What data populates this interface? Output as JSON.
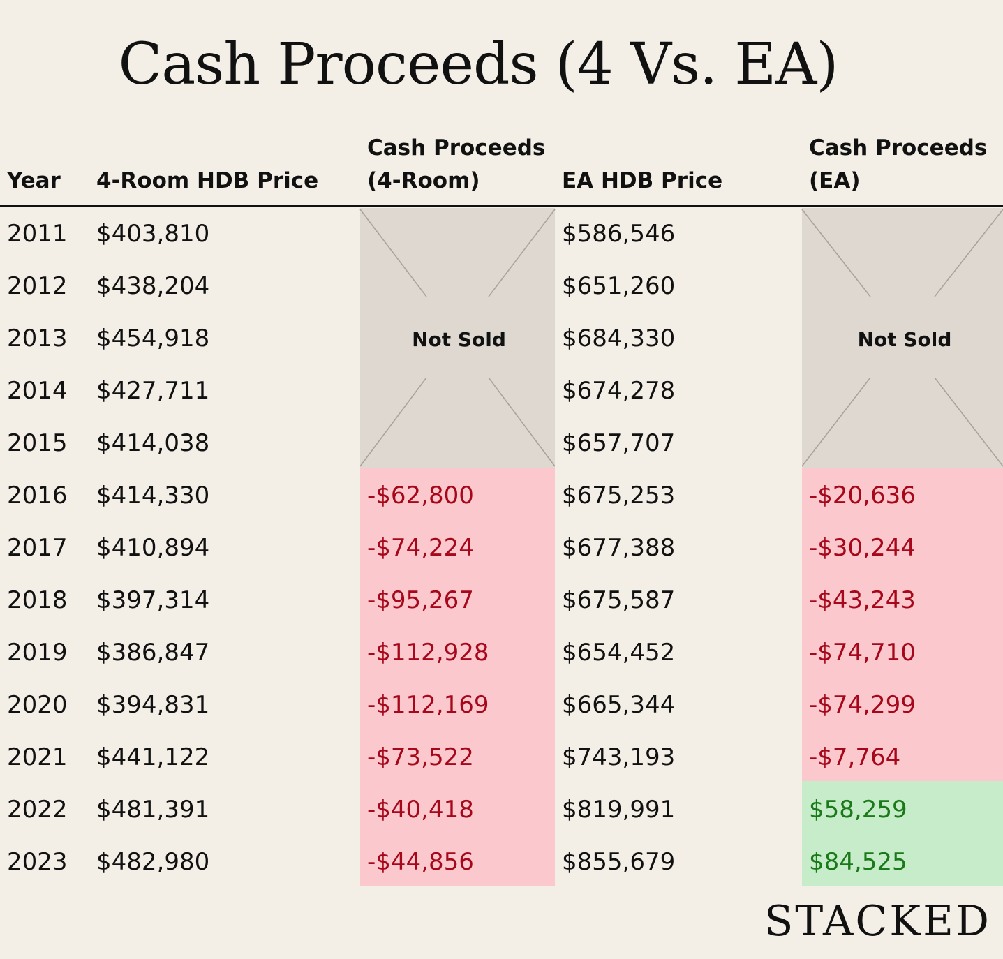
{
  "title": "Cash Proceeds (4 Vs. EA)",
  "headers": {
    "year": "Year",
    "four_room_price": "4-Room HDB Price",
    "cash_four_line1": "Cash Proceeds",
    "cash_four_line2": "(4-Room)",
    "ea_price": "EA HDB Price",
    "cash_ea_line1": "Cash Proceeds",
    "cash_ea_line2": "(EA)"
  },
  "not_sold_label": "Not Sold",
  "colors": {
    "background": "#f3efe6",
    "not_sold_fill": "#ded8d1",
    "negative_fill": "#fac8cd",
    "positive_fill": "#c7ecc9",
    "negative_text": "#a6071a",
    "positive_text": "#1a7a1a"
  },
  "rows": [
    {
      "year": "2011",
      "four_room_price": "$403,810",
      "cash_four": "",
      "ea_price": "$586,546",
      "cash_ea": ""
    },
    {
      "year": "2012",
      "four_room_price": "$438,204",
      "cash_four": "",
      "ea_price": "$651,260",
      "cash_ea": ""
    },
    {
      "year": "2013",
      "four_room_price": "$454,918",
      "cash_four": "",
      "ea_price": "$684,330",
      "cash_ea": ""
    },
    {
      "year": "2014",
      "four_room_price": "$427,711",
      "cash_four": "",
      "ea_price": "$674,278",
      "cash_ea": ""
    },
    {
      "year": "2015",
      "four_room_price": "$414,038",
      "cash_four": "",
      "ea_price": "$657,707",
      "cash_ea": ""
    },
    {
      "year": "2016",
      "four_room_price": "$414,330",
      "cash_four": "-$62,800",
      "ea_price": "$675,253",
      "cash_ea": "-$20,636"
    },
    {
      "year": "2017",
      "four_room_price": "$410,894",
      "cash_four": "-$74,224",
      "ea_price": "$677,388",
      "cash_ea": "-$30,244"
    },
    {
      "year": "2018",
      "four_room_price": "$397,314",
      "cash_four": "-$95,267",
      "ea_price": "$675,587",
      "cash_ea": "-$43,243"
    },
    {
      "year": "2019",
      "four_room_price": "$386,847",
      "cash_four": "-$112,928",
      "ea_price": "$654,452",
      "cash_ea": "-$74,710"
    },
    {
      "year": "2020",
      "four_room_price": "$394,831",
      "cash_four": "-$112,169",
      "ea_price": "$665,344",
      "cash_ea": "-$74,299"
    },
    {
      "year": "2021",
      "four_room_price": "$441,122",
      "cash_four": "-$73,522",
      "ea_price": "$743,193",
      "cash_ea": "-$7,764"
    },
    {
      "year": "2022",
      "four_room_price": "$481,391",
      "cash_four": "-$40,418",
      "ea_price": "$819,991",
      "cash_ea": "$58,259"
    },
    {
      "year": "2023",
      "four_room_price": "$482,980",
      "cash_four": "-$44,856",
      "ea_price": "$855,679",
      "cash_ea": "$84,525"
    }
  ],
  "brand": "STACKED"
}
